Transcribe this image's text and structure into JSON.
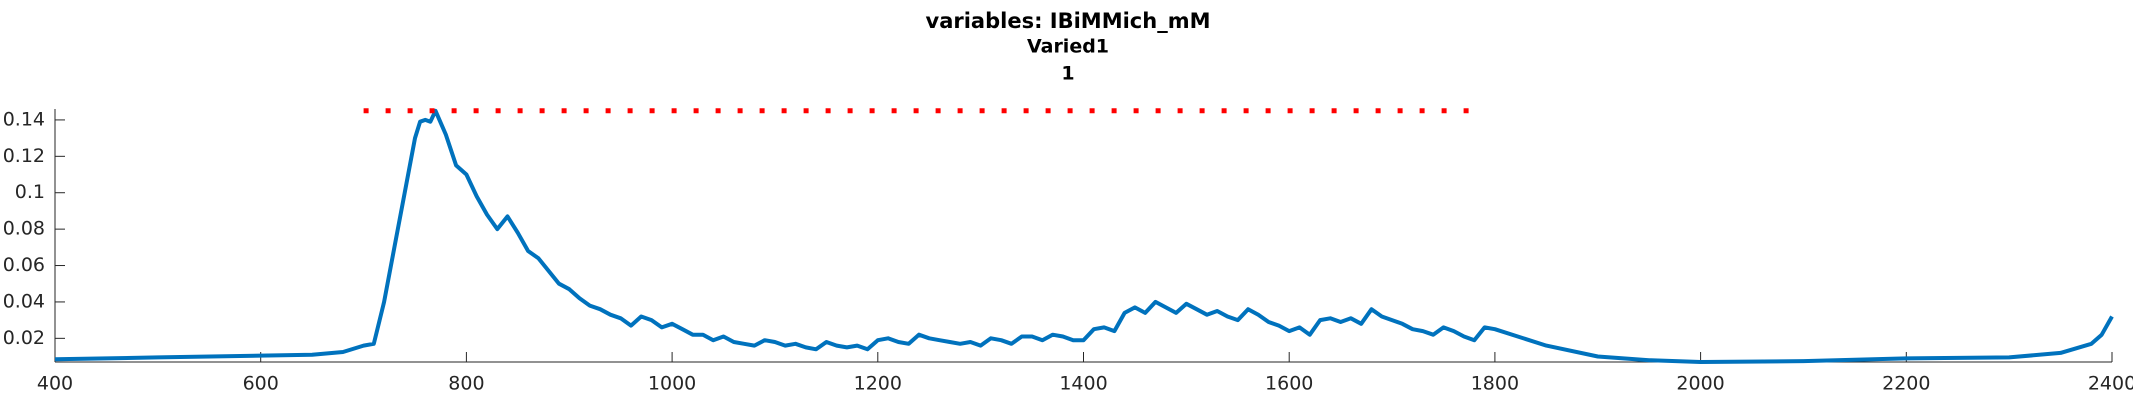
{
  "chart_data": {
    "type": "line",
    "title": "variables: IBiMMich_mM",
    "subtitle": [
      "Varied1",
      "1"
    ],
    "xlim": [
      400,
      2400
    ],
    "xticks": [
      400,
      600,
      800,
      1000,
      1200,
      1400,
      1600,
      1800,
      2000,
      2200,
      2400
    ],
    "ylim": [
      0.007,
      0.146
    ],
    "yticks": [
      0.02,
      0.04,
      0.06,
      0.08,
      0.1,
      0.12,
      0.14
    ],
    "grid": false,
    "series": [
      {
        "color": "#0072bd",
        "style": "solid",
        "x": [
          400,
          500,
          600,
          650,
          680,
          700,
          710,
          720,
          730,
          740,
          750,
          755,
          760,
          765,
          770,
          780,
          790,
          800,
          810,
          820,
          830,
          840,
          850,
          860,
          870,
          880,
          890,
          900,
          910,
          920,
          930,
          940,
          950,
          960,
          970,
          980,
          990,
          1000,
          1010,
          1020,
          1030,
          1040,
          1050,
          1060,
          1070,
          1080,
          1090,
          1100,
          1110,
          1120,
          1130,
          1140,
          1150,
          1160,
          1170,
          1180,
          1190,
          1200,
          1210,
          1220,
          1230,
          1240,
          1250,
          1260,
          1270,
          1280,
          1290,
          1300,
          1310,
          1320,
          1330,
          1340,
          1350,
          1360,
          1370,
          1380,
          1390,
          1400,
          1410,
          1420,
          1430,
          1440,
          1450,
          1460,
          1470,
          1480,
          1490,
          1500,
          1510,
          1520,
          1530,
          1540,
          1550,
          1560,
          1570,
          1580,
          1590,
          1600,
          1610,
          1620,
          1630,
          1640,
          1650,
          1660,
          1670,
          1680,
          1690,
          1700,
          1710,
          1720,
          1730,
          1740,
          1750,
          1760,
          1770,
          1780,
          1790,
          1800,
          1850,
          1900,
          1950,
          2000,
          2100,
          2200,
          2300,
          2350,
          2380,
          2390,
          2400
        ],
        "values": [
          0.0085,
          0.0095,
          0.0105,
          0.011,
          0.0125,
          0.016,
          0.017,
          0.04,
          0.07,
          0.1,
          0.13,
          0.139,
          0.14,
          0.139,
          0.145,
          0.132,
          0.115,
          0.11,
          0.098,
          0.088,
          0.08,
          0.087,
          0.078,
          0.068,
          0.064,
          0.057,
          0.05,
          0.047,
          0.042,
          0.038,
          0.036,
          0.033,
          0.031,
          0.027,
          0.032,
          0.03,
          0.026,
          0.028,
          0.025,
          0.022,
          0.022,
          0.019,
          0.021,
          0.018,
          0.017,
          0.016,
          0.019,
          0.018,
          0.016,
          0.017,
          0.015,
          0.014,
          0.018,
          0.016,
          0.015,
          0.016,
          0.014,
          0.019,
          0.02,
          0.018,
          0.017,
          0.022,
          0.02,
          0.019,
          0.018,
          0.017,
          0.018,
          0.016,
          0.02,
          0.019,
          0.017,
          0.021,
          0.021,
          0.019,
          0.022,
          0.021,
          0.019,
          0.019,
          0.025,
          0.026,
          0.024,
          0.034,
          0.037,
          0.034,
          0.04,
          0.037,
          0.034,
          0.039,
          0.036,
          0.033,
          0.035,
          0.032,
          0.03,
          0.036,
          0.033,
          0.029,
          0.027,
          0.024,
          0.026,
          0.022,
          0.03,
          0.031,
          0.029,
          0.031,
          0.028,
          0.036,
          0.032,
          0.03,
          0.028,
          0.025,
          0.024,
          0.022,
          0.026,
          0.024,
          0.021,
          0.019,
          0.026,
          0.025,
          0.016,
          0.01,
          0.008,
          0.007,
          0.0075,
          0.009,
          0.0095,
          0.012,
          0.017,
          0.022,
          0.032
        ]
      },
      {
        "color": "#ff0000",
        "style": "dotted",
        "x": [
          700,
          1780
        ],
        "values": [
          0.145,
          0.145
        ]
      }
    ]
  }
}
